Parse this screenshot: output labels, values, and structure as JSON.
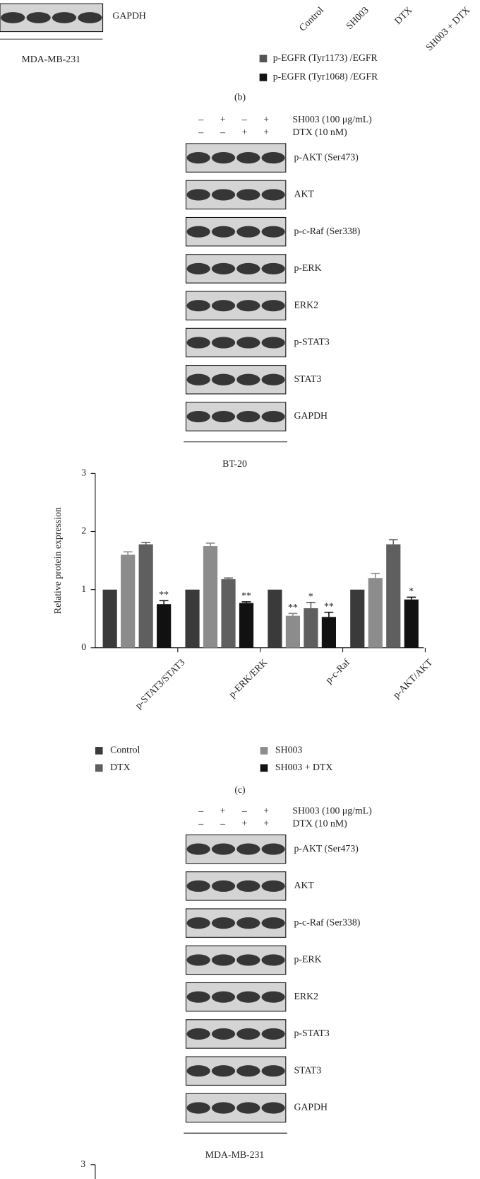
{
  "top_panel": {
    "blot_label": "GAPDH",
    "cell_line": "MDA-MB-231",
    "lane_labels": [
      "Control",
      "SH003",
      "DTX",
      "SH003 + DTX"
    ],
    "legend": [
      "p-EGFR (Tyr1173) /EGFR",
      "p-EGFR (Tyr1068) /EGFR"
    ]
  },
  "panel_b": {
    "label": "(b)",
    "treatments": [
      {
        "name": "SH003 (100 μg/mL)",
        "signs": [
          "–",
          "+",
          "–",
          "+"
        ]
      },
      {
        "name": "DTX (10 nM)",
        "signs": [
          "–",
          "–",
          "+",
          "+"
        ]
      }
    ],
    "blots": [
      "p-AKT (Ser473)",
      "AKT",
      "p-c-Raf (Ser338)",
      "p-ERK",
      "ERK2",
      "p-STAT3",
      "STAT3",
      "GAPDH"
    ],
    "cell_line": "BT-20"
  },
  "chart_data": {
    "type": "bar",
    "y_label": "Relative protein expression",
    "categories": [
      "p-STAT3/STAT3",
      "p-ERK/ERK",
      "p-c-Raf",
      "p-AKT/AKT"
    ],
    "ylim": [
      0,
      3
    ],
    "yticks": [
      0,
      1,
      2,
      3
    ],
    "series": [
      {
        "name": "Control",
        "color": "#3a3a3a",
        "values": [
          1,
          1,
          1,
          1
        ]
      },
      {
        "name": "SH003",
        "color": "#8c8c8c",
        "values": [
          1.6,
          1.75,
          0.55,
          1.2
        ],
        "errors": [
          0.05,
          0.05,
          0.04,
          0.08
        ],
        "significance": [
          null,
          null,
          "**",
          null
        ]
      },
      {
        "name": "DTX",
        "color": "#5f5f5f",
        "values": [
          1.78,
          1.18,
          0.68,
          1.78
        ],
        "errors": [
          0.03,
          0.02,
          0.1,
          0.08
        ],
        "significance": [
          null,
          null,
          "*",
          null
        ]
      },
      {
        "name": "SH003 + DTX",
        "color": "#111111",
        "values": [
          0.75,
          0.77,
          0.53,
          0.83
        ],
        "errors": [
          0.06,
          0.02,
          0.08,
          0.04
        ],
        "significance": [
          "**",
          "**",
          "**",
          "*"
        ]
      }
    ]
  },
  "panel_c": {
    "label": "(c)",
    "treatments": [
      {
        "name": "SH003 (100 μg/mL)",
        "signs": [
          "–",
          "+",
          "–",
          "+"
        ]
      },
      {
        "name": "DTX (10 nM)",
        "signs": [
          "–",
          "–",
          "+",
          "+"
        ]
      }
    ],
    "blots": [
      "p-AKT (Ser473)",
      "AKT",
      "p-c-Raf (Ser338)",
      "p-ERK",
      "ERK2",
      "p-STAT3",
      "STAT3",
      "GAPDH"
    ],
    "cell_line": "MDA-MB-231"
  },
  "next_panel": {
    "axis_tick": "3"
  }
}
